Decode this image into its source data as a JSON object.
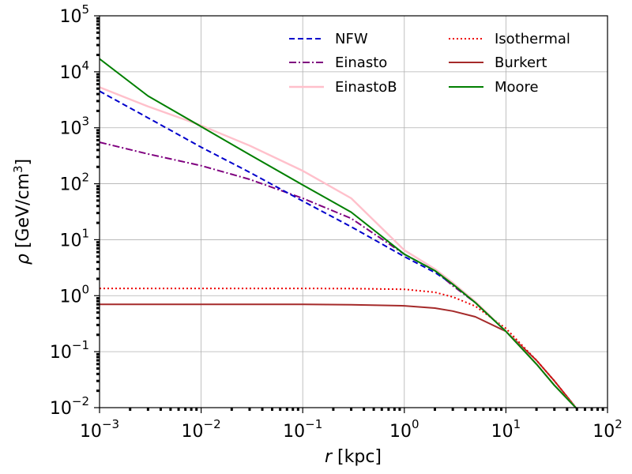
{
  "chart_data": {
    "type": "line",
    "x_scale": "log",
    "y_scale": "log",
    "xlim": [
      0.001,
      100
    ],
    "ylim": [
      0.01,
      100000
    ],
    "grid": true,
    "legend_placement": "top-right",
    "legend_columns": 2,
    "xlabel": {
      "italic": "r",
      "rest": " [kpc]"
    },
    "ylabel": {
      "italic": "ρ",
      "rest": " [GeV/cm",
      "sup": "3",
      "close": "]"
    },
    "x_ticks": [
      {
        "base": "10",
        "exp": "−3"
      },
      {
        "base": "10",
        "exp": "−2"
      },
      {
        "base": "10",
        "exp": "−1"
      },
      {
        "base": "10",
        "exp": "0"
      },
      {
        "base": "10",
        "exp": "1"
      },
      {
        "base": "10",
        "exp": "2"
      }
    ],
    "y_ticks": [
      {
        "base": "10",
        "exp": "−2"
      },
      {
        "base": "10",
        "exp": "−1"
      },
      {
        "base": "10",
        "exp": "0"
      },
      {
        "base": "10",
        "exp": "1"
      },
      {
        "base": "10",
        "exp": "2"
      },
      {
        "base": "10",
        "exp": "3"
      },
      {
        "base": "10",
        "exp": "4"
      },
      {
        "base": "10",
        "exp": "5"
      }
    ],
    "series": [
      {
        "name": "NFW",
        "color": "#0000cc",
        "dash": "dashed",
        "points": [
          [
            0.001,
            4500
          ],
          [
            0.003,
            1500
          ],
          [
            0.01,
            450
          ],
          [
            0.03,
            160
          ],
          [
            0.1,
            49
          ],
          [
            0.3,
            17
          ],
          [
            1,
            5
          ],
          [
            2,
            2.6
          ],
          [
            3,
            1.6
          ],
          [
            5,
            0.75
          ],
          [
            10,
            0.23
          ],
          [
            20,
            0.06
          ],
          [
            30,
            0.025
          ],
          [
            50,
            0.0095
          ]
        ]
      },
      {
        "name": "Einasto",
        "color": "#7f007f",
        "dash": "dashdot",
        "points": [
          [
            0.001,
            550
          ],
          [
            0.003,
            340
          ],
          [
            0.01,
            210
          ],
          [
            0.03,
            120
          ],
          [
            0.1,
            55
          ],
          [
            0.3,
            24
          ],
          [
            1,
            5.5
          ],
          [
            2,
            2.8
          ],
          [
            3,
            1.5
          ],
          [
            5,
            0.75
          ],
          [
            10,
            0.23
          ],
          [
            20,
            0.06
          ],
          [
            30,
            0.025
          ],
          [
            50,
            0.0095
          ]
        ]
      },
      {
        "name": "EinastoB",
        "color": "#ffc0cb",
        "dash": "solid",
        "points": [
          [
            0.001,
            5300
          ],
          [
            0.003,
            2400
          ],
          [
            0.01,
            1100
          ],
          [
            0.03,
            480
          ],
          [
            0.1,
            170
          ],
          [
            0.3,
            55
          ],
          [
            1,
            6.5
          ],
          [
            2,
            3
          ],
          [
            3,
            1.7
          ],
          [
            5,
            0.78
          ],
          [
            10,
            0.23
          ],
          [
            20,
            0.06
          ],
          [
            30,
            0.025
          ],
          [
            50,
            0.0095
          ]
        ]
      },
      {
        "name": "Isothermal",
        "color": "#ee0000",
        "dash": "dotted",
        "points": [
          [
            0.001,
            1.35
          ],
          [
            0.01,
            1.35
          ],
          [
            0.1,
            1.35
          ],
          [
            0.3,
            1.34
          ],
          [
            1,
            1.3
          ],
          [
            2,
            1.15
          ],
          [
            3,
            0.95
          ],
          [
            5,
            0.65
          ],
          [
            10,
            0.26
          ],
          [
            20,
            0.07
          ],
          [
            30,
            0.03
          ],
          [
            50,
            0.0095
          ]
        ]
      },
      {
        "name": "Burkert",
        "color": "#a52a2a",
        "dash": "solid",
        "points": [
          [
            0.001,
            0.7
          ],
          [
            0.01,
            0.7
          ],
          [
            0.1,
            0.7
          ],
          [
            0.3,
            0.69
          ],
          [
            1,
            0.66
          ],
          [
            2,
            0.6
          ],
          [
            3,
            0.53
          ],
          [
            5,
            0.42
          ],
          [
            10,
            0.23
          ],
          [
            20,
            0.07
          ],
          [
            30,
            0.03
          ],
          [
            50,
            0.0095
          ]
        ]
      },
      {
        "name": "Moore",
        "color": "#007f00",
        "dash": "solid",
        "points": [
          [
            0.001,
            17000
          ],
          [
            0.003,
            3700
          ],
          [
            0.01,
            1050
          ],
          [
            0.03,
            330
          ],
          [
            0.1,
            95
          ],
          [
            0.3,
            31
          ],
          [
            1,
            5.5
          ],
          [
            2,
            2.8
          ],
          [
            3,
            1.6
          ],
          [
            5,
            0.75
          ],
          [
            10,
            0.23
          ],
          [
            20,
            0.06
          ],
          [
            30,
            0.025
          ],
          [
            50,
            0.0095
          ]
        ]
      }
    ]
  }
}
